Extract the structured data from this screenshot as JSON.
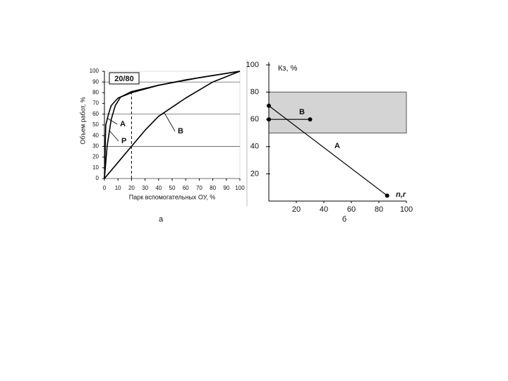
{
  "chart_data": [
    {
      "type": "line",
      "caption": "а",
      "xlabel": "Парк вспомогательных ОУ, %",
      "ylabel": "Объем работ, %",
      "annotation": "20/80",
      "reference_point": {
        "x": 20,
        "y": 80
      },
      "xlim": [
        0,
        100
      ],
      "ylim": [
        0,
        100
      ],
      "xticks": [
        0,
        10,
        20,
        30,
        40,
        50,
        60,
        70,
        80,
        90,
        100
      ],
      "yticks": [
        0,
        10,
        20,
        30,
        40,
        50,
        60,
        70,
        80,
        90,
        100
      ],
      "hlines": [
        30,
        60,
        90
      ],
      "markers": false,
      "series": [
        {
          "name": "А",
          "color": "#000000",
          "x": [
            0,
            1,
            3,
            5,
            10,
            20,
            40,
            60,
            80,
            100
          ],
          "values": [
            0,
            50,
            60,
            68,
            75,
            80,
            87,
            92,
            96,
            100
          ]
        },
        {
          "name": "Р",
          "color": "#000000",
          "x": [
            0,
            2,
            5,
            8,
            12,
            20,
            40,
            70,
            100
          ],
          "values": [
            0,
            30,
            55,
            68,
            76,
            81,
            87,
            94,
            100
          ]
        },
        {
          "name": "В",
          "color": "#000000",
          "x": [
            0,
            10,
            20,
            30,
            40,
            60,
            80,
            100
          ],
          "values": [
            0,
            15,
            30,
            45,
            58,
            75,
            90,
            100
          ]
        }
      ]
    },
    {
      "type": "line",
      "caption": "б",
      "xlabel": "n,r",
      "ylabel": "Кз, %",
      "xlim": [
        0,
        100
      ],
      "ylim": [
        0,
        100
      ],
      "xticks": [
        20,
        40,
        60,
        80,
        100
      ],
      "yticks": [
        20,
        40,
        60,
        80,
        100
      ],
      "shaded_range": [
        50,
        80
      ],
      "shade_color": "#d4d4d4",
      "markers": true,
      "series": [
        {
          "name": "А",
          "color": "#000000",
          "x": [
            0,
            86
          ],
          "values": [
            70,
            4
          ]
        },
        {
          "name": "В",
          "color": "#000000",
          "x": [
            0,
            30
          ],
          "values": [
            60,
            60
          ]
        }
      ]
    }
  ]
}
